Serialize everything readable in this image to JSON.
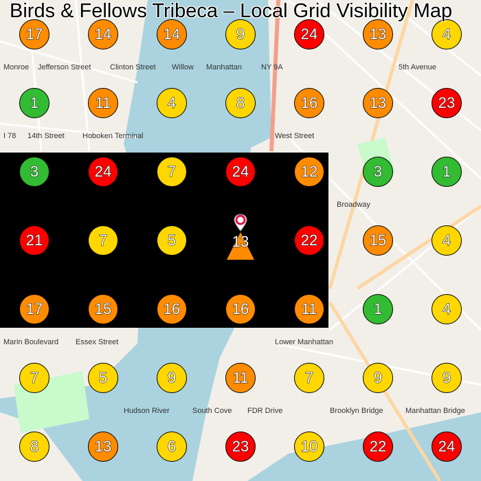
{
  "title": "Birds & Fellows Tribeca – Local Grid Visibility Map",
  "colors": {
    "green": "#33bb33",
    "yellow": "#ffd700",
    "orange": "#ff8c00",
    "red": "#ff0000",
    "water": "#aad3df",
    "land": "#f2efe9"
  },
  "center_marker": {
    "icon": "location-pin-icon",
    "value": "13",
    "shape": "triangle"
  },
  "grid": [
    [
      17,
      14,
      14,
      9,
      24,
      13,
      4
    ],
    [
      1,
      11,
      4,
      8,
      16,
      13,
      23
    ],
    [
      3,
      24,
      7,
      24,
      12,
      3,
      1
    ],
    [
      21,
      7,
      5,
      13,
      22,
      15,
      4
    ],
    [
      17,
      15,
      16,
      16,
      11,
      1,
      4
    ],
    [
      7,
      5,
      9,
      11,
      7,
      9,
      9
    ],
    [
      8,
      13,
      6,
      23,
      10,
      22,
      24
    ]
  ],
  "map_labels": [
    "Hoboken Terminal",
    "NY 9A",
    "West Street",
    "Broadway",
    "5th Avenue",
    "Lower Manhattan",
    "Marin Boulevard",
    "Essex Street",
    "Hudson River",
    "Brooklyn Bridge",
    "Manhattan Bridge",
    "South Cove",
    "I 78",
    "14th Street",
    "Monroe",
    "Jefferson Street",
    "Clinton Street",
    "Willow",
    "Manhattan",
    "FDR Drive"
  ]
}
